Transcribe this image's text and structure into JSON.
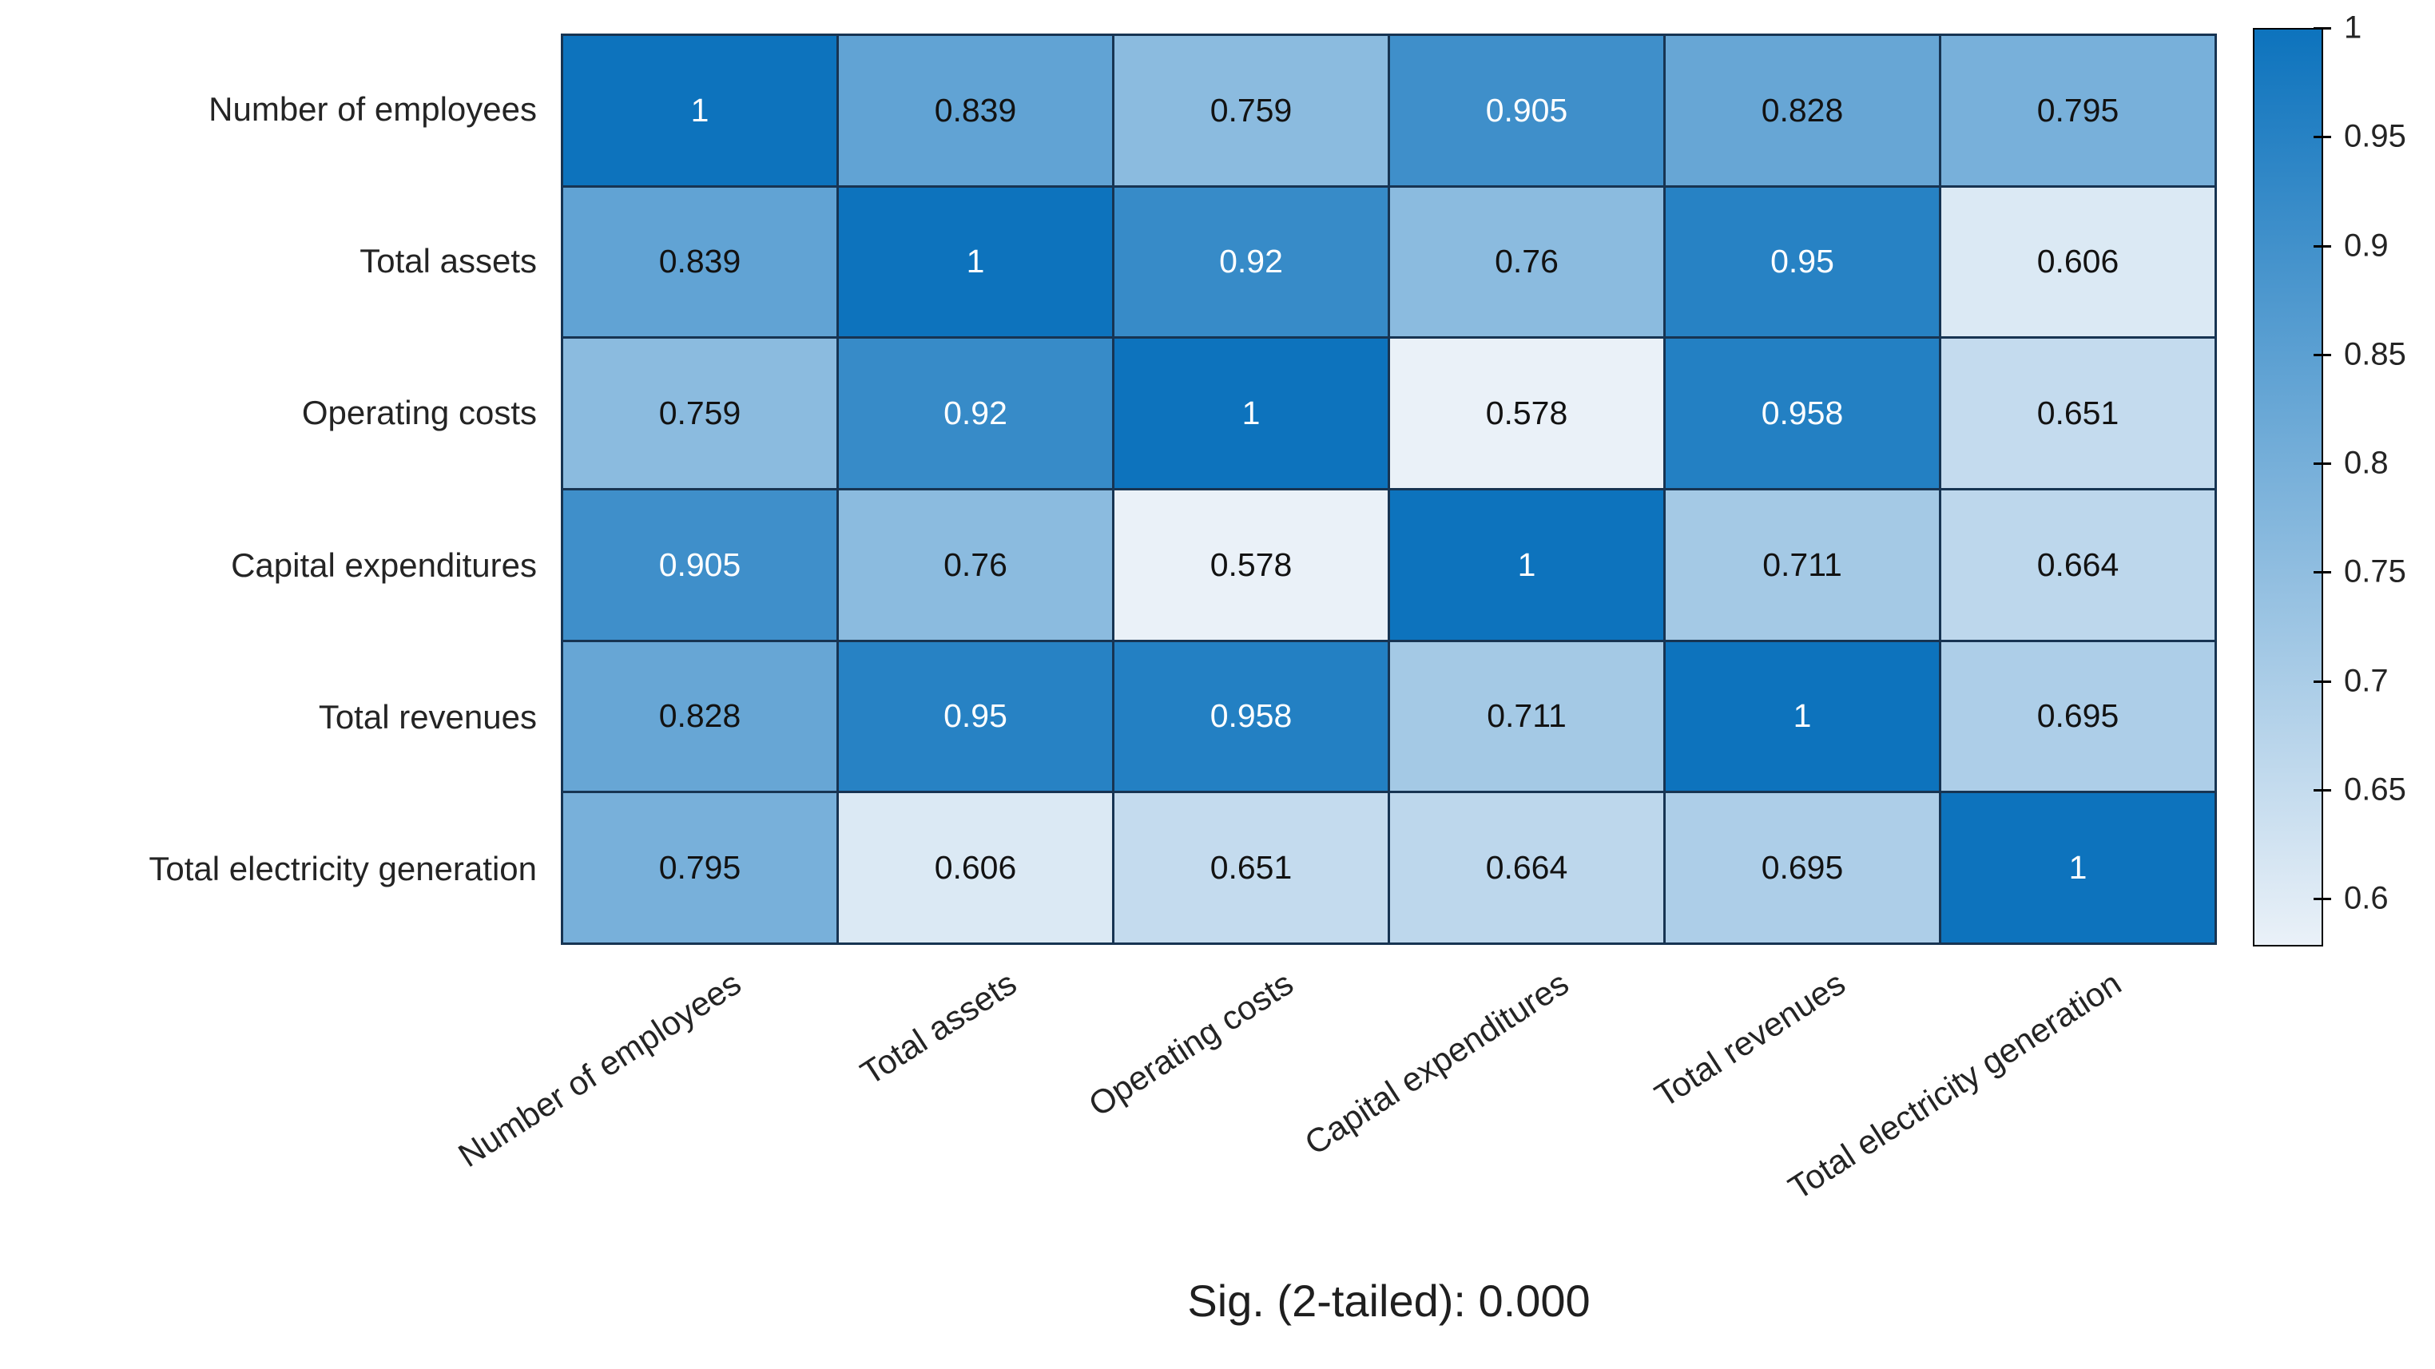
{
  "chart_data": {
    "type": "heatmap",
    "caption": "Sig. (2-tailed): 0.000",
    "row_labels": [
      "Number of employees",
      "Total assets",
      "Operating costs",
      "Capital expenditures",
      "Total revenues",
      "Total electricity generation"
    ],
    "col_labels": [
      "Number of employees",
      "Total assets",
      "Operating costs",
      "Capital expenditures",
      "Total revenues",
      "Total electricity generation"
    ],
    "matrix": [
      [
        1,
        0.839,
        0.759,
        0.905,
        0.828,
        0.795
      ],
      [
        0.839,
        1,
        0.92,
        0.76,
        0.95,
        0.606
      ],
      [
        0.759,
        0.92,
        1,
        0.578,
        0.958,
        0.651
      ],
      [
        0.905,
        0.76,
        0.578,
        1,
        0.711,
        0.664
      ],
      [
        0.828,
        0.95,
        0.958,
        0.711,
        1,
        0.695
      ],
      [
        0.795,
        0.606,
        0.651,
        0.664,
        0.695,
        1
      ]
    ],
    "colorbar": {
      "min": 0.578,
      "max": 1,
      "ticks": [
        1,
        0.95,
        0.9,
        0.85,
        0.8,
        0.75,
        0.7,
        0.65,
        0.6
      ],
      "position": "right"
    },
    "colors": {
      "high": "#0d73bd",
      "low": "#eaf1f8",
      "grid_line": "#173452",
      "cell_text_dark": "#121212",
      "cell_text_light": "#ffffff",
      "label_text": "#242424"
    },
    "white_text_threshold": 0.9,
    "x_tick_rotation_deg": 33,
    "grid": true,
    "title": ""
  }
}
